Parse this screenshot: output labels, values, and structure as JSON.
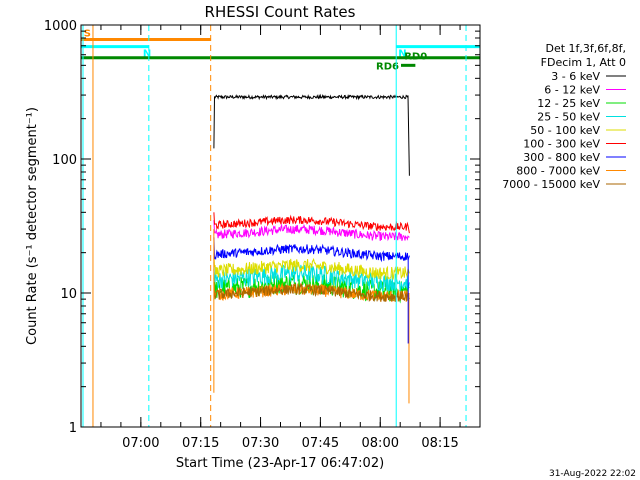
{
  "chart_data": {
    "type": "line",
    "title": "RHESSI Count Rates",
    "xlabel": "Start Time (23-Apr-17 06:47:02)",
    "ylabel": "Count Rate (s⁻¹ detector segment⁻¹)",
    "y_scale": "log",
    "ylim": [
      1,
      1000
    ],
    "y_ticks": [
      {
        "value": 1,
        "label": "1"
      },
      {
        "value": 10,
        "label": "10"
      },
      {
        "value": 100,
        "label": "100"
      },
      {
        "value": 1000,
        "label": "1000"
      }
    ],
    "xlim_minutes": [
      405,
      505
    ],
    "x_ticks": [
      {
        "minute": 420,
        "label": "07:00"
      },
      {
        "minute": 435,
        "label": "07:15"
      },
      {
        "minute": 450,
        "label": "07:30"
      },
      {
        "minute": 465,
        "label": "07:45"
      },
      {
        "minute": 480,
        "label": "08:00"
      },
      {
        "minute": 495,
        "label": "08:15"
      }
    ],
    "data_window_minutes": [
      438.3,
      487.3
    ],
    "legend_header": [
      "Det 1f,3f,6f,8f,",
      "FDecim 1, Att 0"
    ],
    "series": [
      {
        "name": "3 - 6 keV",
        "color": "#000000",
        "level": 290,
        "edge_start": 120,
        "edge_end": 75,
        "noise": 0.012,
        "hump": 0.0
      },
      {
        "name": "6 - 12 keV",
        "color": "#ff00ff",
        "level": 28,
        "edge_start": 35,
        "edge_end": 26,
        "noise": 0.035,
        "hump": 0.16
      },
      {
        "name": "12 - 25 keV",
        "color": "#00dd00",
        "level": 11,
        "edge_start": 15,
        "edge_end": 11,
        "noise": 0.08,
        "hump": 0.18
      },
      {
        "name": "25 - 50 keV",
        "color": "#00e0e0",
        "level": 13,
        "edge_start": 17,
        "edge_end": 12,
        "noise": 0.07,
        "hump": 0.18
      },
      {
        "name": "50 - 100 keV",
        "color": "#dddd00",
        "level": 15,
        "edge_start": 20,
        "edge_end": 14,
        "noise": 0.05,
        "hump": 0.17
      },
      {
        "name": "100 - 300 keV",
        "color": "#ff0000",
        "level": 33,
        "edge_start": 40,
        "edge_end": 28,
        "noise": 0.03,
        "hump": 0.15
      },
      {
        "name": "300 - 800 keV",
        "color": "#0000ff",
        "level": 20,
        "edge_start": 26,
        "edge_end": 19,
        "noise": 0.035,
        "hump": 0.16
      },
      {
        "name": "800 - 7000 keV",
        "color": "#ff8800",
        "level": 10,
        "edge_start": 13,
        "edge_end": 9.5,
        "noise": 0.045,
        "hump": 0.15
      },
      {
        "name": "7000 - 15000 keV",
        "color": "#aa6600",
        "level": 10,
        "edge_start": 12,
        "edge_end": 9,
        "noise": 0.04,
        "hump": 0.15
      }
    ],
    "annotations": [
      {
        "kind": "flag_bar",
        "label": "S",
        "color": "#ff8800",
        "x_start": 405,
        "x_end": 437.5,
        "y": 780
      },
      {
        "kind": "flag_bar",
        "label": "N",
        "color": "#00ffff",
        "x_start": 405,
        "x_end": 422,
        "y": 690
      },
      {
        "kind": "flag_bar",
        "label": "N",
        "color": "#00ffff",
        "x_start": 484,
        "x_end": 505,
        "y": 690
      },
      {
        "kind": "flag_bar",
        "label": "",
        "color": "#008800",
        "x_start": 405,
        "x_end": 505,
        "y": 570
      },
      {
        "kind": "flag_bar",
        "label": "RD6",
        "color": "#008800",
        "x_start": 485.2,
        "x_end": 488.8,
        "y": 500
      },
      {
        "kind": "flag_label",
        "label": "RD0",
        "color": "#008800",
        "x": 485.5,
        "y": 590
      },
      {
        "kind": "vline",
        "color": "#00ffff",
        "x": 405.5,
        "style": "solid"
      },
      {
        "kind": "vline",
        "color": "#ff8800",
        "x": 408,
        "style": "solid"
      },
      {
        "kind": "vline",
        "color": "#00ffff",
        "x": 422,
        "style": "dashed"
      },
      {
        "kind": "vline",
        "color": "#ff8800",
        "x": 437.5,
        "style": "dashed"
      },
      {
        "kind": "vline",
        "color": "#00ffff",
        "x": 484,
        "style": "solid"
      },
      {
        "kind": "vline",
        "color": "#00ffff",
        "x": 501.5,
        "style": "dashed"
      }
    ],
    "footer_date": "31-Aug-2022 22:02"
  }
}
